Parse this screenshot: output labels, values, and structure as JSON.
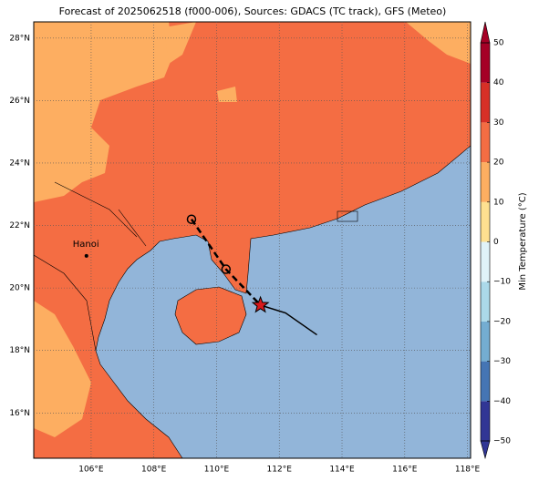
{
  "title": "Forecast of 2025062518 (f000-006), Sources: GDACS (TC track), GFS (Meteo)",
  "map": {
    "lonlim": [
      104.17,
      118.1
    ],
    "latlim": [
      14.55,
      28.52
    ],
    "lonticks": [
      {
        "value": 106,
        "label": "106°E"
      },
      {
        "value": 108,
        "label": "108°E"
      },
      {
        "value": 110,
        "label": "110°E"
      },
      {
        "value": 112,
        "label": "112°E"
      },
      {
        "value": 114,
        "label": "114°E"
      },
      {
        "value": 116,
        "label": "116°E"
      },
      {
        "value": 118,
        "label": "118°E"
      }
    ],
    "latticks": [
      {
        "value": 16,
        "label": "16°N"
      },
      {
        "value": 18,
        "label": "18°N"
      },
      {
        "value": 20,
        "label": "20°N"
      },
      {
        "value": 22,
        "label": "22°N"
      },
      {
        "value": 24,
        "label": "24°N"
      },
      {
        "value": 26,
        "label": "26°N"
      },
      {
        "value": 28,
        "label": "28°N"
      }
    ],
    "cities": [
      {
        "name": "Hanoi",
        "lon": 105.85,
        "lat": 21.03
      }
    ],
    "forecast_track": {
      "lon": [
        109.2,
        110.3,
        111.4
      ],
      "lat": [
        22.2,
        20.6,
        19.45
      ]
    },
    "past_track": {
      "lon": [
        111.4,
        112.2,
        113.2
      ],
      "lat": [
        19.45,
        19.2,
        18.5
      ]
    }
  },
  "colorbar": {
    "label": "Min Temperature (°C)",
    "lim": [
      -50,
      50
    ],
    "ticks": [
      {
        "value": -50,
        "label": "−50"
      },
      {
        "value": -40,
        "label": "−40"
      },
      {
        "value": -30,
        "label": "−30"
      },
      {
        "value": -20,
        "label": "−20"
      },
      {
        "value": -10,
        "label": "−10"
      },
      0,
      10,
      20,
      30,
      40,
      50
    ],
    "colors": [
      "#313695",
      "#4575b4",
      "#74add1",
      "#abd9e9",
      "#e0f3f8",
      "#fee090",
      "#fdae61",
      "#f46d43",
      "#d73027",
      "#a50026"
    ]
  }
}
